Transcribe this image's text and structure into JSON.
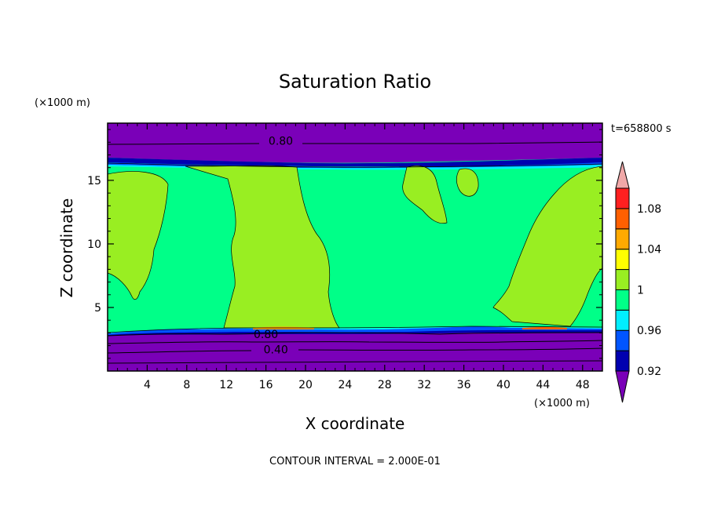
{
  "chart_data": {
    "type": "heatmap",
    "title": "Saturation Ratio",
    "xlabel": "X coordinate",
    "ylabel": "Z coordinate",
    "x_unit": "(×1000 m)",
    "z_unit": "(×1000 m)",
    "time_label": "t=658800 s",
    "contour_interval_label": "CONTOUR INTERVAL = 2.000E-01",
    "xlim": [
      0,
      50
    ],
    "ylim": [
      0,
      19.5
    ],
    "x_ticks": [
      4,
      8,
      12,
      16,
      20,
      24,
      28,
      32,
      36,
      40,
      44,
      48
    ],
    "x_tick_labels": [
      "4",
      "8",
      "12",
      "16",
      "20",
      "24",
      "28",
      "32",
      "36",
      "40",
      "44",
      "48"
    ],
    "y_ticks": [
      5,
      10,
      15
    ],
    "y_tick_labels": [
      "5",
      "10",
      "15"
    ],
    "colorbar": {
      "levels": [
        0.92,
        0.94,
        0.96,
        0.98,
        1.0,
        1.02,
        1.04,
        1.06,
        1.08,
        1.1
      ],
      "colors": [
        "#7a00b8",
        "#0000b0",
        "#0055ff",
        "#00eeff",
        "#00ff88",
        "#99ee22",
        "#ffff00",
        "#ffaa00",
        "#ff6000",
        "#ff2020",
        "#f0a8a8"
      ],
      "tick_labels": [
        "0.92",
        "0.96",
        "1",
        "1.04",
        "1.08"
      ]
    },
    "contour_labels": [
      {
        "text": "0.80",
        "x": 17.5,
        "z": 18.1
      },
      {
        "text": "0.80",
        "x": 16.0,
        "z": 2.9
      },
      {
        "text": "0.40",
        "x": 17.0,
        "z": 1.7
      }
    ],
    "regions": [
      {
        "level_index": 0,
        "description": "upper dry layer",
        "z_range": [
          17.0,
          19.5
        ]
      },
      {
        "level_index": 4,
        "description": "saturated layer",
        "z_range": [
          3.3,
          17.0
        ]
      },
      {
        "level_index": 0,
        "description": "lower dry layer",
        "z_range": [
          0,
          3.3
        ]
      }
    ]
  }
}
